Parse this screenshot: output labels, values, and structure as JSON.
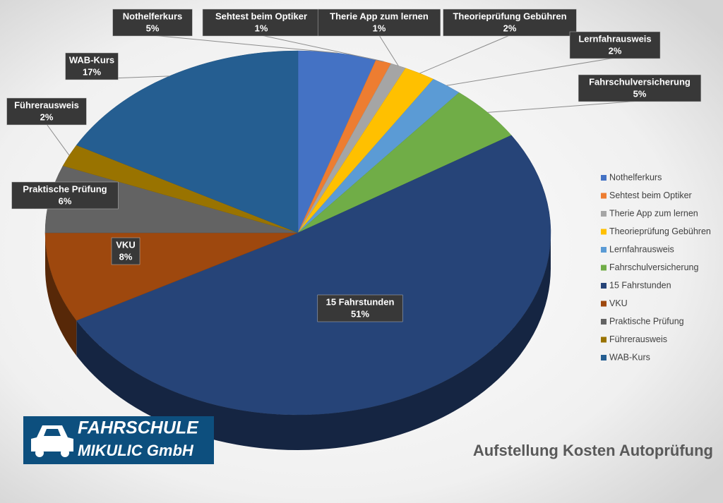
{
  "chart_data": {
    "type": "pie",
    "title": "Aufstellung Kosten Autoprüfung",
    "logo_text": [
      "FAHRSCHULE",
      "MIKULIC GmbH"
    ],
    "categories": [
      "Nothelferkurs",
      "Sehtest beim Optiker",
      "Therie App zum lernen",
      "Theorieprüfung Gebühren",
      "Lernfahrausweis",
      "Fahrschulversicherung",
      "15 Fahrstunden",
      "VKU",
      "Praktische Prüfung",
      "Führerausweis",
      "WAB-Kurs"
    ],
    "values": [
      5,
      1,
      1,
      2,
      2,
      5,
      51,
      8,
      6,
      2,
      17
    ],
    "value_labels": [
      "5%",
      "1%",
      "1%",
      "2%",
      "2%",
      "5%",
      "51%",
      "8%",
      "6%",
      "2%",
      "17%"
    ],
    "colors": [
      "#4472c4",
      "#ed7d31",
      "#a5a5a5",
      "#ffc000",
      "#5b9bd5",
      "#70ad47",
      "#264478",
      "#9e480e",
      "#636363",
      "#997300",
      "#255e91"
    ],
    "legend": "right"
  }
}
